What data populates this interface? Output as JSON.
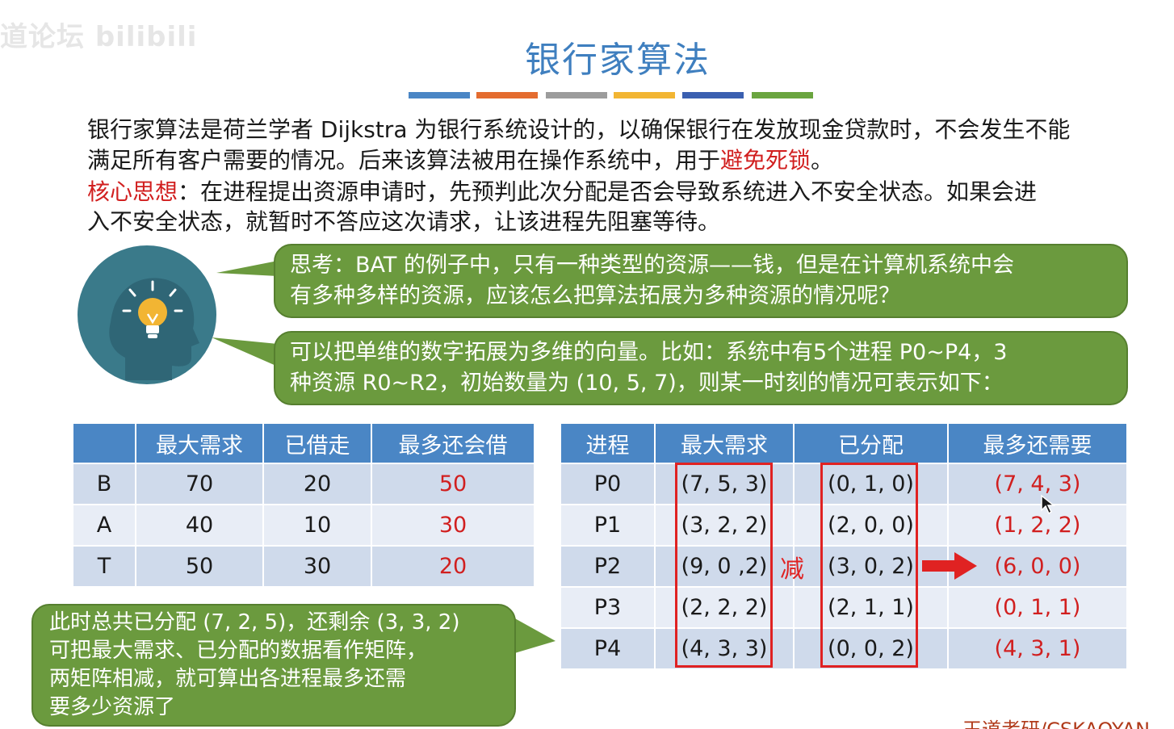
{
  "watermark": "道论坛 bilibili",
  "title": "银行家算法",
  "title_bar_colors": [
    "#4a86c5",
    "#e46c2f",
    "#9c9c9c",
    "#f2b533",
    "#3a5fb0",
    "#6aa53f"
  ],
  "intro": {
    "line1": "银行家算法是荷兰学者 Dijkstra 为银行系统设计的，以确保银行在发放现金贷款时，不会发生不能",
    "line2_before": "满足所有客户需要的情况。后来该算法被用在操作系统中，用于",
    "line2_highlight": "避免死锁",
    "line2_after": "。"
  },
  "core": {
    "label": "核心思想",
    "line1": "：在进程提出资源申请时，先预判此次分配是否会导致系统进入不安全状态。如果会进",
    "line2": "入不安全状态，就暂时不答应这次请求，让该进程先阻塞等待。"
  },
  "bubble1": {
    "line1": "思考：BAT 的例子中，只有一种类型的资源——钱，但是在计算机系统中会",
    "line2": "有多种多样的资源，应该怎么把算法拓展为多种资源的情况呢？"
  },
  "bubble2": {
    "line1": "可以把单维的数字拓展为多维的向量。比如：系统中有5个进程 P0~P4，3",
    "line2": "种资源  R0~R2，初始数量为 (10, 5, 7)，则某一时刻的情况可表示如下："
  },
  "bubble3": {
    "line1": "此时总共已分配 (7, 2, 5)，还剩余 (3, 3, 2)",
    "line2": "可把最大需求、已分配的数据看作矩阵，",
    "line3": "两矩阵相减，就可算出各进程最多还需",
    "line4": "要多少资源了"
  },
  "table1": {
    "headers": [
      "",
      "最大需求",
      "已借走",
      "最多还会借"
    ],
    "rows": [
      [
        "B",
        "70",
        "20",
        "50"
      ],
      [
        "A",
        "40",
        "10",
        "30"
      ],
      [
        "T",
        "50",
        "30",
        "20"
      ]
    ]
  },
  "table2": {
    "headers": [
      "进程",
      "最大需求",
      "已分配",
      "最多还需要"
    ],
    "rows": [
      [
        "P0",
        "(7, 5, 3)",
        "(0, 1, 0)",
        "(7, 4, 3)"
      ],
      [
        "P1",
        "(3, 2, 2)",
        "(2, 0, 0)",
        "(1, 2, 2)"
      ],
      [
        "P2",
        "(9, 0 ,2)",
        "(3, 0, 2)",
        "(6, 0, 0)"
      ],
      [
        "P3",
        "(2, 2, 2)",
        "(2, 1, 1)",
        "(0, 1, 1)"
      ],
      [
        "P4",
        "(4, 3, 3)",
        "(0, 0, 2)",
        "(4, 3, 1)"
      ]
    ]
  },
  "minus_label": "减",
  "footer": "王道考研/CSKAOYAN"
}
